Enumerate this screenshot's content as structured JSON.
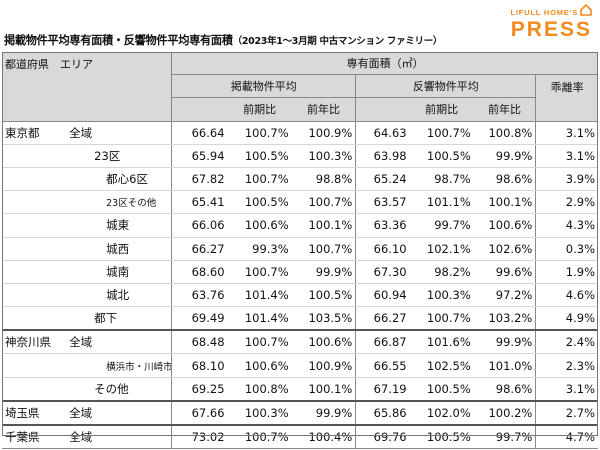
{
  "title": "掲載物件平均専有面積・反響物件平均専有面積",
  "period": "（2023年1～3月期 中古マンション ファミリー）",
  "logo": {
    "top": "LIFULL HOME'S",
    "bottom": "PRESS"
  },
  "headers": {
    "region": "都道府県　エリア",
    "area": "専有面積（㎡）",
    "listed": "掲載物件平均",
    "response": "反響物件平均",
    "qoq": "前期比",
    "yoy": "前年比",
    "divergence": "乖離率"
  },
  "rows": [
    {
      "pref": "東京都",
      "area": "全域",
      "la": "66.64",
      "lq": "100.7%",
      "ly": "100.9%",
      "ra": "64.63",
      "rq": "100.7%",
      "ry": "100.8%",
      "dv": "3.1%"
    },
    {
      "pref": "",
      "area": "23区",
      "la": "65.94",
      "lq": "100.5%",
      "ly": "100.3%",
      "ra": "63.98",
      "rq": "100.5%",
      "ry": "99.9%",
      "dv": "3.1%"
    },
    {
      "pref": "",
      "area": "都心6区",
      "la": "67.82",
      "lq": "100.7%",
      "ly": "98.8%",
      "ra": "65.24",
      "rq": "98.7%",
      "ry": "98.6%",
      "dv": "3.9%"
    },
    {
      "pref": "",
      "area": "23区その他",
      "la": "65.41",
      "lq": "100.5%",
      "ly": "100.7%",
      "ra": "63.57",
      "rq": "101.1%",
      "ry": "100.1%",
      "dv": "2.9%"
    },
    {
      "pref": "",
      "area": "城東",
      "la": "66.06",
      "lq": "100.6%",
      "ly": "100.1%",
      "ra": "63.36",
      "rq": "99.7%",
      "ry": "100.6%",
      "dv": "4.3%"
    },
    {
      "pref": "",
      "area": "城西",
      "la": "66.27",
      "lq": "99.3%",
      "ly": "100.7%",
      "ra": "66.10",
      "rq": "102.1%",
      "ry": "102.6%",
      "dv": "0.3%"
    },
    {
      "pref": "",
      "area": "城南",
      "la": "68.60",
      "lq": "100.7%",
      "ly": "99.9%",
      "ra": "67.30",
      "rq": "98.2%",
      "ry": "99.6%",
      "dv": "1.9%"
    },
    {
      "pref": "",
      "area": "城北",
      "la": "63.76",
      "lq": "101.4%",
      "ly": "100.5%",
      "ra": "60.94",
      "rq": "100.3%",
      "ry": "97.2%",
      "dv": "4.6%"
    },
    {
      "pref": "",
      "area": "都下",
      "la": "69.49",
      "lq": "101.4%",
      "ly": "103.5%",
      "ra": "66.27",
      "rq": "100.7%",
      "ry": "103.2%",
      "dv": "4.9%"
    },
    {
      "pref": "神奈川県",
      "area": "全域",
      "la": "68.48",
      "lq": "100.7%",
      "ly": "100.6%",
      "ra": "66.87",
      "rq": "101.6%",
      "ry": "99.9%",
      "dv": "2.4%"
    },
    {
      "pref": "",
      "area": "横浜市・川崎市",
      "la": "68.10",
      "lq": "100.6%",
      "ly": "100.9%",
      "ra": "66.55",
      "rq": "102.5%",
      "ry": "101.0%",
      "dv": "2.3%"
    },
    {
      "pref": "",
      "area": "その他",
      "la": "69.25",
      "lq": "100.8%",
      "ly": "100.1%",
      "ra": "67.19",
      "rq": "100.5%",
      "ry": "98.6%",
      "dv": "3.1%"
    },
    {
      "pref": "埼玉県",
      "area": "全域",
      "la": "67.66",
      "lq": "100.3%",
      "ly": "99.9%",
      "ra": "65.86",
      "rq": "102.0%",
      "ry": "100.2%",
      "dv": "2.7%"
    },
    {
      "pref": "千葉県",
      "area": "全域",
      "la": "73.02",
      "lq": "100.7%",
      "ly": "100.4%",
      "ra": "69.76",
      "rq": "100.5%",
      "ry": "99.7%",
      "dv": "4.7%"
    }
  ]
}
